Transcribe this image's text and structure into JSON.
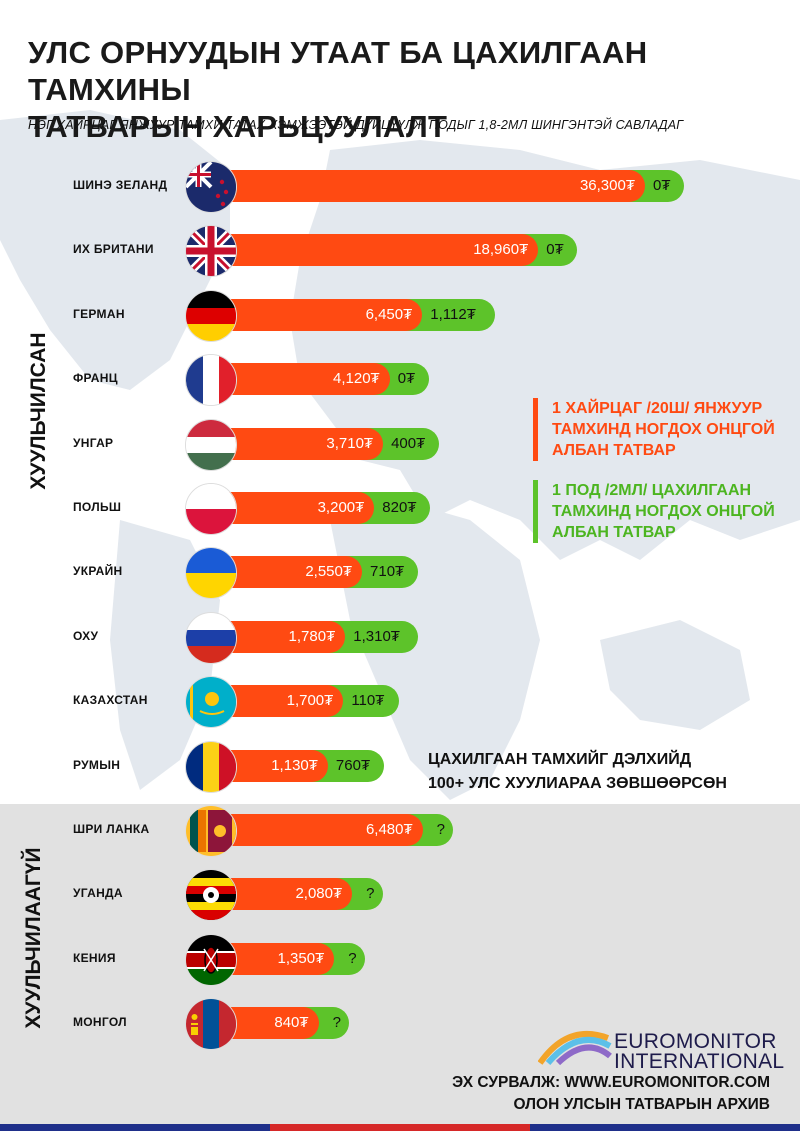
{
  "title_line1": "УЛС ОРНУУДЫН УТААТ БА ЦАХИЛГААН ТАМХИНЫ",
  "title_line2": "ТАТВАРЫН ХАРЬЦУУЛАЛТ",
  "subtitle": "НЭГ ХАЙРЦАГ ЯНЖУУР ТАМХИ ТАТАХ ХЭМЖЭЭТЭЙ ДҮЙЦҮҮЛЖ ПОДЫГ 1,8-2МЛ ШИНГЭНТЭЙ САВЛАДАГ",
  "groups": {
    "legal": "ХУУЛЬЧИЛСАН",
    "not_legal": "ХУУЛЬЧИЛААГҮЙ"
  },
  "legend": {
    "cigarette": "1 ХАЙРЦАГ /20Ш/ ЯНЖУУР ТАМХИНД НОГДОХ ОНЦГОЙ АЛБАН ТАТВАР",
    "ecig": "1 ПОД /2МЛ/ ЦАХИЛГААН ТАМХИНД НОГДОХ ОНЦГОЙ АЛБАН ТАТВАР"
  },
  "note_line1": "ЦАХИЛГААН ТАМХИЙГ ДЭЛХИЙД",
  "note_line2": "100+ УЛС ХУУЛИАРАА ЗӨВШӨӨРСӨН",
  "logo": {
    "line1": "EUROMONITOR",
    "line2": "INTERNATIONAL"
  },
  "source_line1": "ЭХ СУРВАЛЖ: WWW.EUROMONITOR.COM",
  "source_line2": "ОЛОН УЛСЫН ТАТВАРЫН АРХИВ",
  "colors": {
    "cigarette": "#ff4a12",
    "ecig": "#5dc32a"
  },
  "chart_data": {
    "type": "bar",
    "orientation": "horizontal",
    "unit": "₮",
    "categories": [
      "ШИНЭ ЗЕЛАНД",
      "ИХ БРИТАНИ",
      "ГЕРМАН",
      "ФРАНЦ",
      "УНГАР",
      "ПОЛЬШ",
      "УКРАЙН",
      "ОХУ",
      "КАЗАХСТАН",
      "РУМЫН",
      "ШРИ ЛАНКА",
      "УГАНДА",
      "КЕНИЯ",
      "МОНГОЛ"
    ],
    "series": [
      {
        "name": "1 ХАЙРЦАГ /20Ш/ ЯНЖУУР ТАМХИНД НОГДОХ ОНЦГОЙ АЛБАН ТАТВАР",
        "values": [
          36300,
          18960,
          6450,
          4120,
          3710,
          3200,
          2550,
          1780,
          1700,
          1130,
          6480,
          2080,
          1350,
          840
        ],
        "labels": [
          "36,300₮",
          "18,960₮",
          "6,450₮",
          "4,120₮",
          "3,710₮",
          "3,200₮",
          "2,550₮",
          "1,780₮",
          "1,700₮",
          "1,130₮",
          "6,480₮",
          "2,080₮",
          "1,350₮",
          "840₮"
        ]
      },
      {
        "name": "1 ПОД /2МЛ/ ЦАХИЛГААН ТАМХИНД НОГДОХ ОНЦГОЙ АЛБАН ТАТВАР",
        "values": [
          0,
          0,
          1112,
          0,
          400,
          820,
          710,
          1310,
          110,
          760,
          null,
          null,
          null,
          null
        ],
        "labels": [
          "0₮",
          "0₮",
          "1,112₮",
          "0₮",
          "400₮",
          "820₮",
          "710₮",
          "1,310₮",
          "110₮",
          "760₮",
          "?",
          "?",
          "?",
          "?"
        ]
      }
    ],
    "groups": [
      {
        "name": "ХУУЛЬЧИЛСАН",
        "count": 10
      },
      {
        "name": "ХУУЛЬЧИЛААГҮЙ",
        "count": 4
      }
    ]
  }
}
